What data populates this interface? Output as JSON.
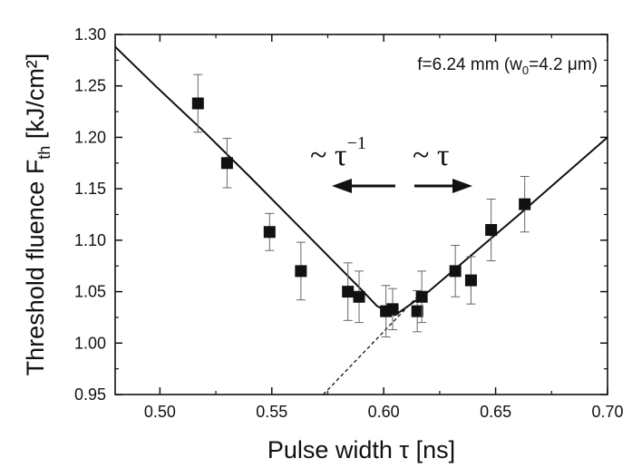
{
  "chart_data": {
    "type": "scatter",
    "xlabel": "Pulse width τ [ns]",
    "ylabel": "Threshold fluence F",
    "ylabel_sub": "th",
    "ylabel_unit": " [kJ/cm²]",
    "xlim": [
      0.48,
      0.7
    ],
    "ylim": [
      0.95,
      1.3
    ],
    "xticks": [
      "0.50",
      "0.55",
      "0.60",
      "0.65",
      "0.70"
    ],
    "yticks": [
      "0.95",
      "1.00",
      "1.05",
      "1.10",
      "1.15",
      "1.20",
      "1.25",
      "1.30"
    ],
    "annotation_main": "f=6.24 mm (w",
    "annotation_sub": "0",
    "annotation_tail": "=4.2 μm)",
    "left_trend_base": "~ τ",
    "left_trend_exp": "−1",
    "right_trend": "~ τ",
    "points": [
      {
        "x": 0.517,
        "y": 1.233,
        "err": 0.028
      },
      {
        "x": 0.53,
        "y": 1.175,
        "err": 0.024
      },
      {
        "x": 0.549,
        "y": 1.108,
        "err": 0.018
      },
      {
        "x": 0.563,
        "y": 1.07,
        "err": 0.028
      },
      {
        "x": 0.584,
        "y": 1.05,
        "err": 0.028
      },
      {
        "x": 0.589,
        "y": 1.045,
        "err": 0.025
      },
      {
        "x": 0.601,
        "y": 1.031,
        "err": 0.025
      },
      {
        "x": 0.604,
        "y": 1.033,
        "err": 0.02
      },
      {
        "x": 0.615,
        "y": 1.031,
        "err": 0.02
      },
      {
        "x": 0.617,
        "y": 1.045,
        "err": 0.025
      },
      {
        "x": 0.632,
        "y": 1.07,
        "err": 0.025
      },
      {
        "x": 0.639,
        "y": 1.061,
        "err": 0.023
      },
      {
        "x": 0.648,
        "y": 1.11,
        "err": 0.03
      },
      {
        "x": 0.663,
        "y": 1.135,
        "err": 0.027
      }
    ],
    "fit_left": {
      "x": [
        0.48,
        0.498,
        0.52,
        0.54,
        0.56,
        0.58,
        0.59,
        0.597,
        0.605
      ],
      "y": [
        1.288,
        1.25,
        1.205,
        1.162,
        1.118,
        1.074,
        1.052,
        1.036,
        1.027
      ]
    },
    "fit_right": {
      "x": [
        0.605,
        0.62,
        0.64,
        0.66,
        0.68,
        0.7
      ],
      "y": [
        1.027,
        1.05,
        1.087,
        1.124,
        1.162,
        1.2
      ]
    },
    "extrapolation": {
      "x": [
        0.573,
        0.615
      ],
      "y": [
        0.95,
        1.045
      ]
    }
  }
}
